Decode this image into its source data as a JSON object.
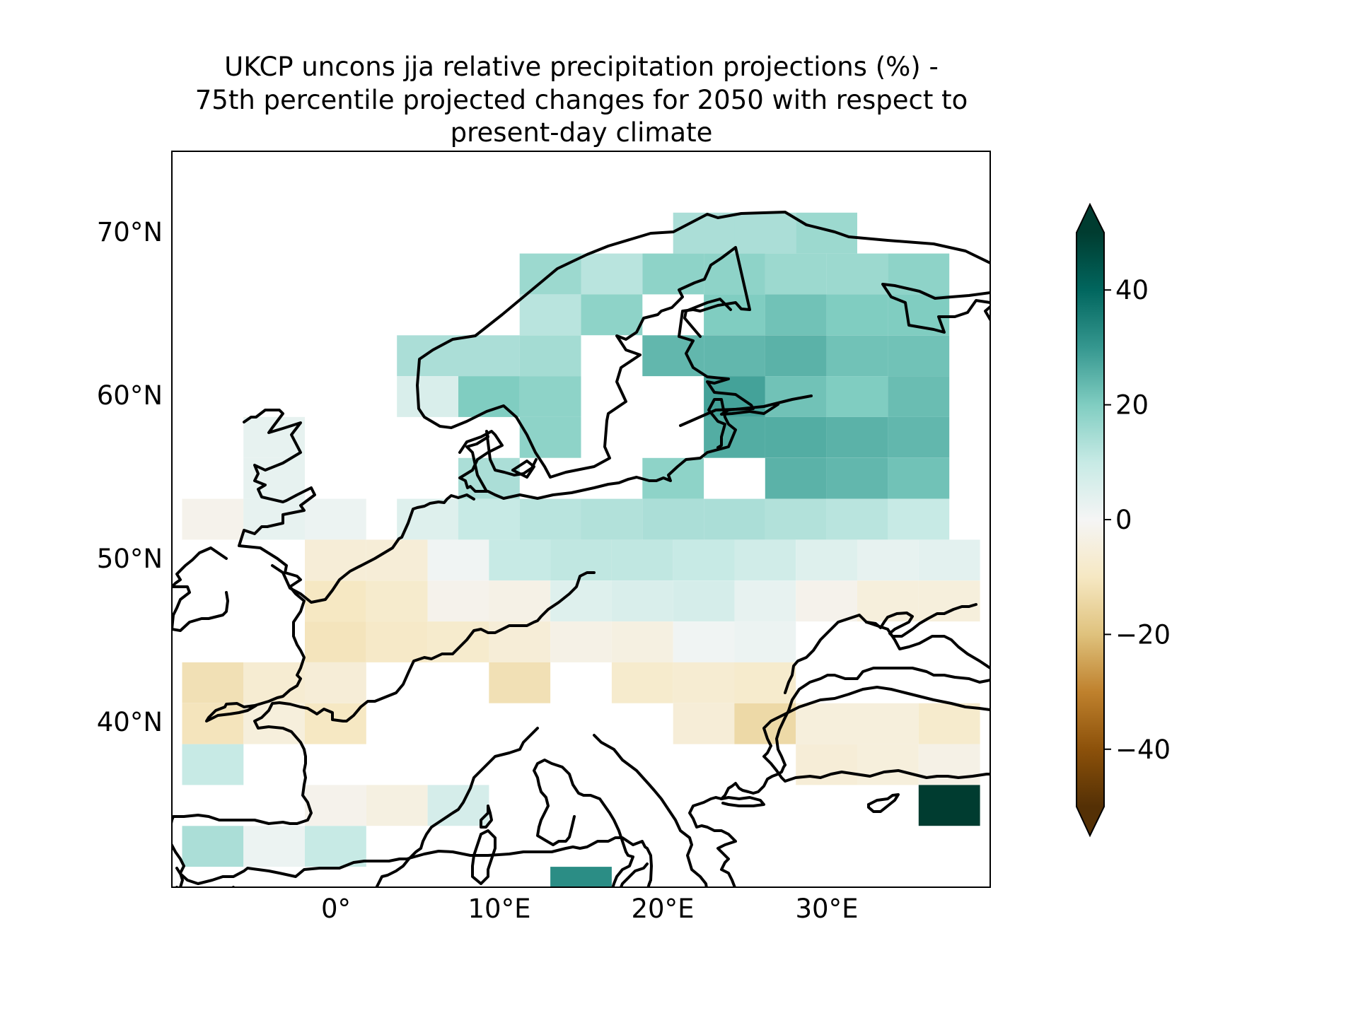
{
  "title": {
    "line1": "UKCP uncons jja relative precipitation projections (%) -",
    "line2": "75th percentile projected changes for 2050 with respect to",
    "line3": "present-day climate"
  },
  "map": {
    "lon_range": [
      -10,
      40
    ],
    "lat_range": [
      30,
      75
    ],
    "lat_ticks": [
      {
        "value": 70,
        "label": "70°N"
      },
      {
        "value": 60,
        "label": "60°N"
      },
      {
        "value": 50,
        "label": "50°N"
      },
      {
        "value": 40,
        "label": "40°N"
      }
    ],
    "lon_ticks": [
      {
        "value": 0,
        "label": "0°"
      },
      {
        "value": 10,
        "label": "10°E"
      },
      {
        "value": 20,
        "label": "20°E"
      },
      {
        "value": 30,
        "label": "30°E"
      }
    ],
    "grid": false
  },
  "colorbar": {
    "colormap": "BrBG",
    "range": [
      -50,
      50
    ],
    "extend": "both",
    "ticks": [
      {
        "value": 40,
        "label": "40"
      },
      {
        "value": 20,
        "label": "20"
      },
      {
        "value": 0,
        "label": "0"
      },
      {
        "value": -20,
        "label": "−20"
      },
      {
        "value": -40,
        "label": "−40"
      }
    ]
  },
  "chart_data": {
    "type": "heatmap",
    "cell_size_deg": [
      3.75,
      2.5
    ],
    "units": "%",
    "cells": [
      [
        22.5,
        70,
        14
      ],
      [
        26.25,
        70,
        14
      ],
      [
        30,
        70,
        16
      ],
      [
        13.125,
        67.5,
        16
      ],
      [
        16.875,
        67.5,
        12
      ],
      [
        20.625,
        67.5,
        18
      ],
      [
        24.375,
        67.5,
        18
      ],
      [
        28.125,
        67.5,
        16
      ],
      [
        31.875,
        67.5,
        16
      ],
      [
        35.625,
        67.5,
        18
      ],
      [
        13.125,
        65,
        12
      ],
      [
        16.875,
        65,
        18
      ],
      [
        24.375,
        65,
        20
      ],
      [
        28.125,
        65,
        22
      ],
      [
        31.875,
        65,
        20
      ],
      [
        35.625,
        65,
        20
      ],
      [
        5.625,
        62.5,
        14
      ],
      [
        9.375,
        62.5,
        14
      ],
      [
        13.125,
        62.5,
        15
      ],
      [
        20.625,
        62.5,
        24
      ],
      [
        24.375,
        62.5,
        24
      ],
      [
        28.125,
        62.5,
        25
      ],
      [
        31.875,
        62.5,
        22
      ],
      [
        35.625,
        62.5,
        22
      ],
      [
        5.625,
        60,
        6
      ],
      [
        9.375,
        60,
        20
      ],
      [
        13.125,
        60,
        18
      ],
      [
        24.375,
        60,
        28
      ],
      [
        28.125,
        60,
        22
      ],
      [
        31.875,
        60,
        20
      ],
      [
        35.625,
        60,
        23
      ],
      [
        -3.75,
        57.5,
        3
      ],
      [
        13.125,
        57.5,
        18
      ],
      [
        24.375,
        57.5,
        26
      ],
      [
        28.125,
        57.5,
        26
      ],
      [
        31.875,
        57.5,
        25
      ],
      [
        35.625,
        57.5,
        24
      ],
      [
        -3.75,
        55,
        3
      ],
      [
        9.375,
        55,
        14
      ],
      [
        20.625,
        55,
        18
      ],
      [
        28.125,
        55,
        25
      ],
      [
        31.875,
        55,
        24
      ],
      [
        35.625,
        55,
        22
      ],
      [
        -7.5,
        52.5,
        -2
      ],
      [
        -3.75,
        52.5,
        3
      ],
      [
        0,
        52.5,
        2
      ],
      [
        5.625,
        52.5,
        5
      ],
      [
        9.375,
        52.5,
        10
      ],
      [
        13.125,
        52.5,
        12
      ],
      [
        16.875,
        52.5,
        13
      ],
      [
        20.625,
        52.5,
        14
      ],
      [
        24.375,
        52.5,
        14
      ],
      [
        28.125,
        52.5,
        13
      ],
      [
        31.875,
        52.5,
        12
      ],
      [
        35.625,
        52.5,
        10
      ],
      [
        0,
        50,
        -6
      ],
      [
        3.75,
        50,
        -6
      ],
      [
        7.5,
        50,
        1
      ],
      [
        11.25,
        50,
        10
      ],
      [
        15,
        50,
        11
      ],
      [
        18.75,
        50,
        11
      ],
      [
        22.5,
        50,
        10
      ],
      [
        26.25,
        50,
        8
      ],
      [
        30,
        50,
        5
      ],
      [
        33.75,
        50,
        3
      ],
      [
        37.5,
        50,
        4
      ],
      [
        0,
        47.5,
        -10
      ],
      [
        3.75,
        47.5,
        -8
      ],
      [
        7.5,
        47.5,
        -2
      ],
      [
        11.25,
        47.5,
        -3
      ],
      [
        15,
        47.5,
        5
      ],
      [
        18.75,
        47.5,
        6
      ],
      [
        22.5,
        47.5,
        7
      ],
      [
        26.25,
        47.5,
        3
      ],
      [
        30,
        47.5,
        -2
      ],
      [
        33.75,
        47.5,
        -5
      ],
      [
        37.5,
        47.5,
        -5
      ],
      [
        0,
        45,
        -11
      ],
      [
        3.75,
        45,
        -9
      ],
      [
        7.5,
        45,
        -8
      ],
      [
        11.25,
        45,
        -6
      ],
      [
        15,
        45,
        -3
      ],
      [
        18.75,
        45,
        -4
      ],
      [
        22.5,
        45,
        1
      ],
      [
        26.25,
        45,
        2
      ],
      [
        -7.5,
        42.5,
        -12
      ],
      [
        -3.75,
        42.5,
        -7
      ],
      [
        0,
        42.5,
        -6
      ],
      [
        11.25,
        42.5,
        -12
      ],
      [
        18.75,
        42.5,
        -8
      ],
      [
        22.5,
        42.5,
        -7
      ],
      [
        26.25,
        42.5,
        -8
      ],
      [
        -7.5,
        40,
        -11
      ],
      [
        -3.75,
        40,
        -5
      ],
      [
        0,
        40,
        -10
      ],
      [
        22.5,
        40,
        -6
      ],
      [
        26.25,
        40,
        -14
      ],
      [
        30,
        40,
        -5
      ],
      [
        33.75,
        40,
        -5
      ],
      [
        37.5,
        40,
        -8
      ],
      [
        -7.5,
        37.5,
        10
      ],
      [
        30,
        37.5,
        -6
      ],
      [
        33.75,
        37.5,
        -5
      ],
      [
        37.5,
        37.5,
        -3
      ],
      [
        0,
        35,
        -2
      ],
      [
        3.75,
        35,
        -4
      ],
      [
        7.5,
        35,
        7
      ],
      [
        37.5,
        35,
        50
      ],
      [
        -7.5,
        32.5,
        14
      ],
      [
        -3.75,
        32.5,
        2
      ],
      [
        0,
        32.5,
        10
      ],
      [
        15,
        30,
        32
      ]
    ]
  }
}
